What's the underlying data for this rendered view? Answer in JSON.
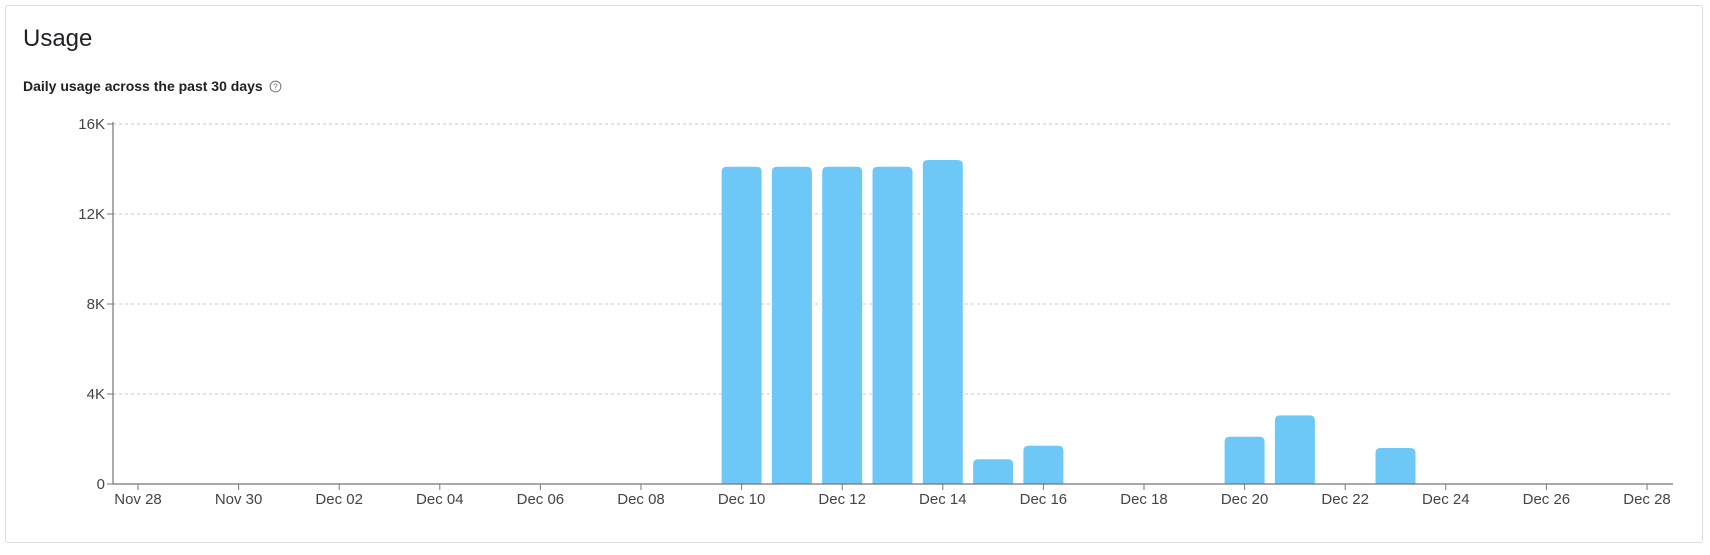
{
  "card": {
    "title": "Usage",
    "subtitle": "Daily usage across the past 30 days",
    "help_icon": "question-circle-icon"
  },
  "colors": {
    "bar": "#6ec8f7",
    "grid": "#c8c8c8",
    "axis": "#757575",
    "tick_text": "#444444"
  },
  "chart_data": {
    "type": "bar",
    "title": "",
    "xlabel": "",
    "ylabel": "",
    "ylim": [
      0,
      16000
    ],
    "y_ticks": [
      0,
      4000,
      8000,
      12000,
      16000
    ],
    "y_tick_labels": [
      "0",
      "4K",
      "8K",
      "12K",
      "16K"
    ],
    "grid": true,
    "legend": "none",
    "categories": [
      "Nov 28",
      "Nov 29",
      "Nov 30",
      "Dec 01",
      "Dec 02",
      "Dec 03",
      "Dec 04",
      "Dec 05",
      "Dec 06",
      "Dec 07",
      "Dec 08",
      "Dec 09",
      "Dec 10",
      "Dec 11",
      "Dec 12",
      "Dec 13",
      "Dec 14",
      "Dec 15",
      "Dec 16",
      "Dec 17",
      "Dec 18",
      "Dec 19",
      "Dec 20",
      "Dec 21",
      "Dec 22",
      "Dec 23",
      "Dec 24",
      "Dec 25",
      "Dec 26",
      "Dec 27",
      "Dec 28"
    ],
    "x_tick_labels": [
      "Nov 28",
      "Nov 30",
      "Dec 02",
      "Dec 04",
      "Dec 06",
      "Dec 08",
      "Dec 10",
      "Dec 12",
      "Dec 14",
      "Dec 16",
      "Dec 18",
      "Dec 20",
      "Dec 22",
      "Dec 24",
      "Dec 26",
      "Dec 28"
    ],
    "values": [
      0,
      0,
      0,
      0,
      0,
      0,
      0,
      0,
      0,
      0,
      0,
      0,
      14100,
      14100,
      14100,
      14100,
      14400,
      1100,
      1700,
      0,
      0,
      0,
      2100,
      3050,
      0,
      1600,
      0,
      0,
      0,
      0,
      0
    ]
  }
}
